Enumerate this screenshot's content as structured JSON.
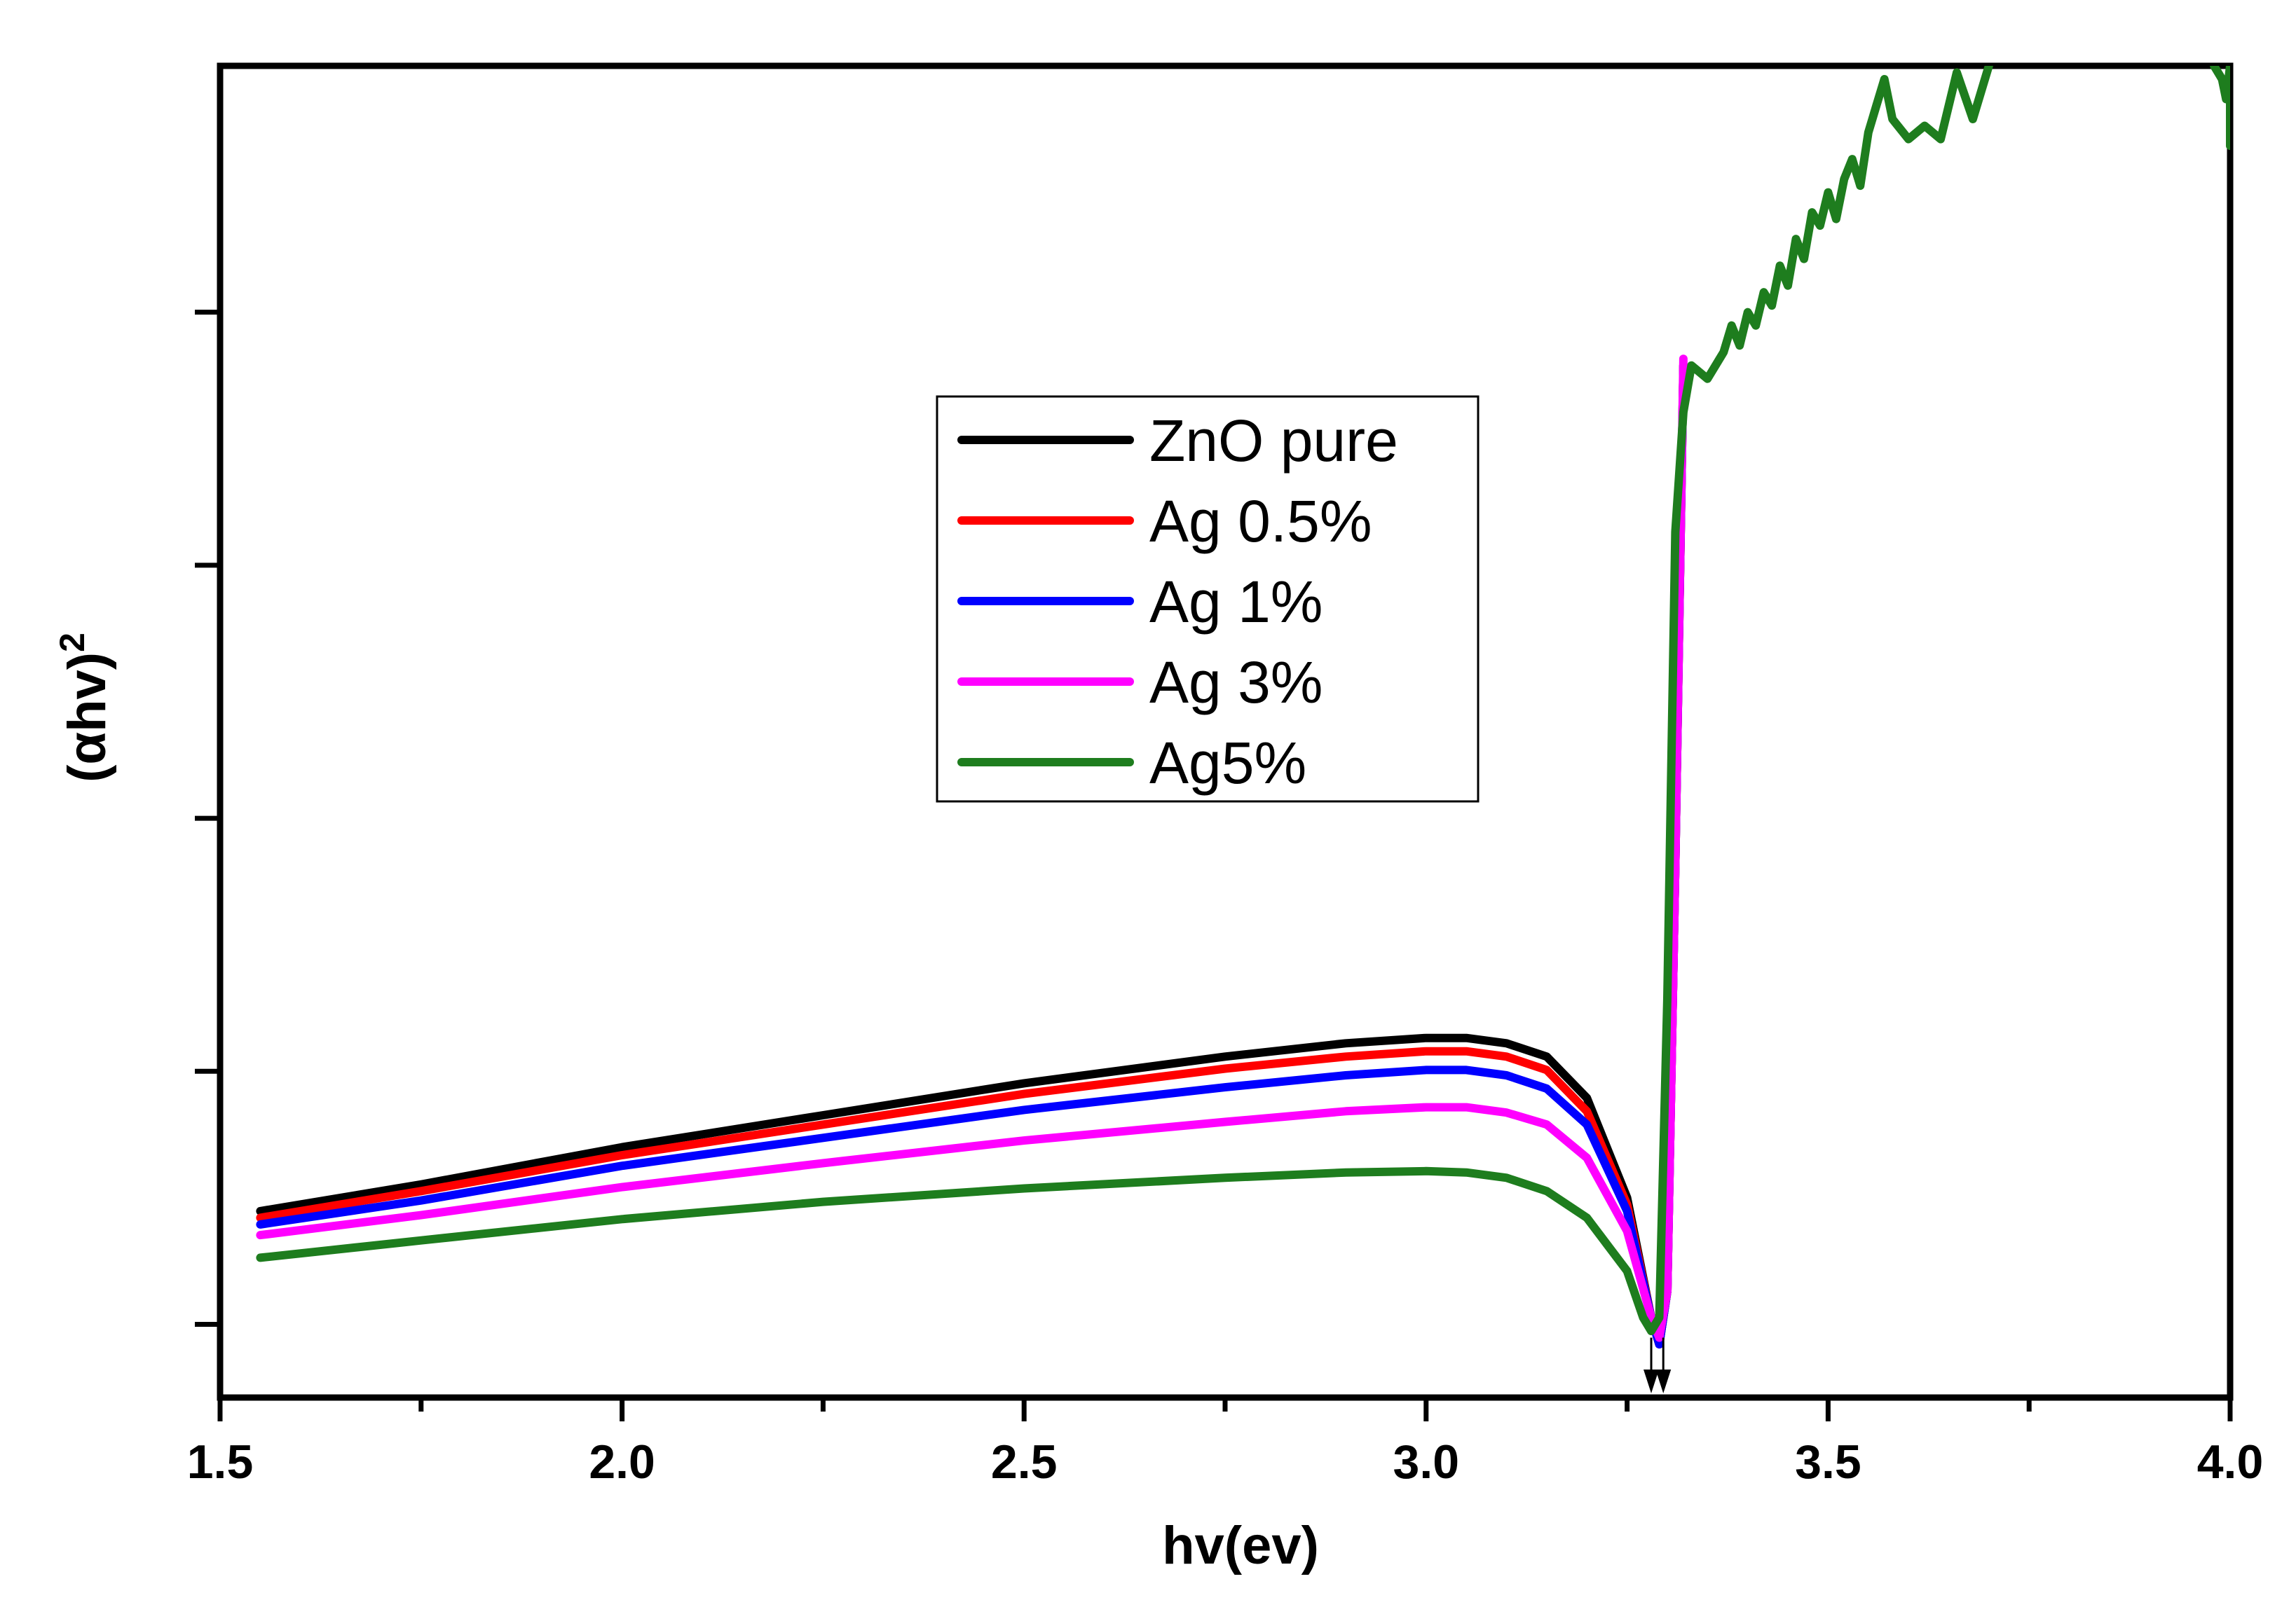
{
  "chart_data": {
    "type": "line",
    "title": "",
    "xlabel": "hv(ev)",
    "ylabel_main": "(αhv)",
    "ylabel_sup": "2",
    "xlim": [
      1.5,
      4.0
    ],
    "ylim": [
      0,
      100
    ],
    "x_ticks": [
      1.5,
      2.0,
      2.5,
      3.0,
      3.5,
      4.0
    ],
    "x_tick_labels": [
      "1.5",
      "2.0",
      "2.5",
      "3.0",
      "3.5",
      "4.0"
    ],
    "x_minor_ticks": [
      1.75,
      2.25,
      2.75,
      3.25,
      3.75
    ],
    "y_ticks": [
      5.5,
      24.5,
      43.5,
      62.5,
      81.5
    ],
    "y_tick_labels": [],
    "grid": false,
    "legend_position": "center",
    "band_gap_arrows_x": [
      3.28,
      3.295
    ],
    "series": [
      {
        "name": "ZnO pure",
        "color": "#000000",
        "points": [
          [
            1.55,
            14.0
          ],
          [
            1.75,
            16.0
          ],
          [
            2.0,
            18.8
          ],
          [
            2.25,
            21.2
          ],
          [
            2.5,
            23.6
          ],
          [
            2.75,
            25.6
          ],
          [
            2.9,
            26.6
          ],
          [
            3.0,
            27.0
          ],
          [
            3.05,
            27.0
          ],
          [
            3.1,
            26.6
          ],
          [
            3.15,
            25.6
          ],
          [
            3.2,
            22.5
          ],
          [
            3.25,
            15.0
          ],
          [
            3.28,
            6.0
          ],
          [
            3.29,
            4.0
          ],
          [
            3.3,
            8.0
          ],
          [
            3.31,
            40.0
          ],
          [
            3.32,
            77.5
          ]
        ]
      },
      {
        "name": "Ag 0.5%",
        "color": "#ff0000",
        "points": [
          [
            1.55,
            13.5
          ],
          [
            1.75,
            15.5
          ],
          [
            2.0,
            18.2
          ],
          [
            2.25,
            20.5
          ],
          [
            2.5,
            22.8
          ],
          [
            2.75,
            24.7
          ],
          [
            2.9,
            25.6
          ],
          [
            3.0,
            26.0
          ],
          [
            3.05,
            26.0
          ],
          [
            3.1,
            25.6
          ],
          [
            3.15,
            24.6
          ],
          [
            3.2,
            21.5
          ],
          [
            3.25,
            14.5
          ],
          [
            3.28,
            6.0
          ],
          [
            3.29,
            4.0
          ],
          [
            3.3,
            8.0
          ],
          [
            3.31,
            40.0
          ],
          [
            3.32,
            77.5
          ]
        ]
      },
      {
        "name": "Ag 1%",
        "color": "#0000ff",
        "points": [
          [
            1.55,
            13.0
          ],
          [
            1.75,
            14.8
          ],
          [
            2.0,
            17.4
          ],
          [
            2.25,
            19.5
          ],
          [
            2.5,
            21.6
          ],
          [
            2.75,
            23.3
          ],
          [
            2.9,
            24.2
          ],
          [
            3.0,
            24.6
          ],
          [
            3.05,
            24.6
          ],
          [
            3.1,
            24.2
          ],
          [
            3.15,
            23.2
          ],
          [
            3.2,
            20.5
          ],
          [
            3.25,
            14.0
          ],
          [
            3.28,
            6.0
          ],
          [
            3.29,
            4.0
          ],
          [
            3.3,
            8.0
          ],
          [
            3.31,
            40.0
          ],
          [
            3.32,
            77.5
          ]
        ]
      },
      {
        "name": "Ag 3%",
        "color": "#ff00ff",
        "points": [
          [
            1.55,
            12.2
          ],
          [
            1.75,
            13.7
          ],
          [
            2.0,
            15.8
          ],
          [
            2.25,
            17.6
          ],
          [
            2.5,
            19.3
          ],
          [
            2.75,
            20.7
          ],
          [
            2.9,
            21.5
          ],
          [
            3.0,
            21.8
          ],
          [
            3.05,
            21.8
          ],
          [
            3.1,
            21.4
          ],
          [
            3.15,
            20.5
          ],
          [
            3.2,
            18.0
          ],
          [
            3.25,
            12.5
          ],
          [
            3.28,
            6.0
          ],
          [
            3.29,
            4.5
          ],
          [
            3.3,
            8.0
          ],
          [
            3.31,
            40.0
          ],
          [
            3.32,
            78.0
          ]
        ]
      },
      {
        "name": "Ag5%",
        "color": "#1e7d1e",
        "points": [
          [
            1.55,
            10.5
          ],
          [
            1.75,
            11.8
          ],
          [
            2.0,
            13.4
          ],
          [
            2.25,
            14.7
          ],
          [
            2.5,
            15.7
          ],
          [
            2.75,
            16.5
          ],
          [
            2.9,
            16.9
          ],
          [
            3.0,
            17.0
          ],
          [
            3.05,
            16.9
          ],
          [
            3.1,
            16.5
          ],
          [
            3.15,
            15.5
          ],
          [
            3.2,
            13.5
          ],
          [
            3.25,
            9.5
          ],
          [
            3.27,
            6.0
          ],
          [
            3.28,
            5.0
          ],
          [
            3.29,
            6.0
          ],
          [
            3.3,
            30.0
          ],
          [
            3.31,
            65.0
          ],
          [
            3.32,
            74.0
          ],
          [
            3.33,
            77.5
          ],
          [
            3.35,
            76.5
          ],
          [
            3.37,
            78.5
          ],
          [
            3.38,
            80.5
          ],
          [
            3.39,
            79.0
          ],
          [
            3.4,
            81.5
          ],
          [
            3.41,
            80.5
          ],
          [
            3.42,
            83.0
          ],
          [
            3.43,
            82.0
          ],
          [
            3.44,
            85.0
          ],
          [
            3.45,
            83.5
          ],
          [
            3.46,
            87.0
          ],
          [
            3.47,
            85.5
          ],
          [
            3.48,
            89.0
          ],
          [
            3.49,
            88.0
          ],
          [
            3.5,
            90.5
          ],
          [
            3.51,
            88.5
          ],
          [
            3.52,
            91.5
          ],
          [
            3.53,
            93.0
          ],
          [
            3.54,
            91.0
          ],
          [
            3.55,
            95.0
          ],
          [
            3.56,
            97.0
          ],
          [
            3.57,
            99.0
          ],
          [
            3.58,
            96.0
          ],
          [
            3.6,
            94.5
          ],
          [
            3.62,
            95.5
          ],
          [
            3.64,
            94.5
          ],
          [
            3.66,
            99.5
          ],
          [
            3.68,
            96.0
          ],
          [
            3.7,
            100.0
          ]
        ]
      },
      {
        "name": "Ag5%",
        "color": "#1e7d1e",
        "points": [
          [
            3.98,
            100.0
          ],
          [
            3.99,
            99.0
          ],
          [
            3.995,
            97.5
          ],
          [
            4.0,
            100.0
          ],
          [
            4.0,
            94.0
          ]
        ]
      }
    ]
  }
}
